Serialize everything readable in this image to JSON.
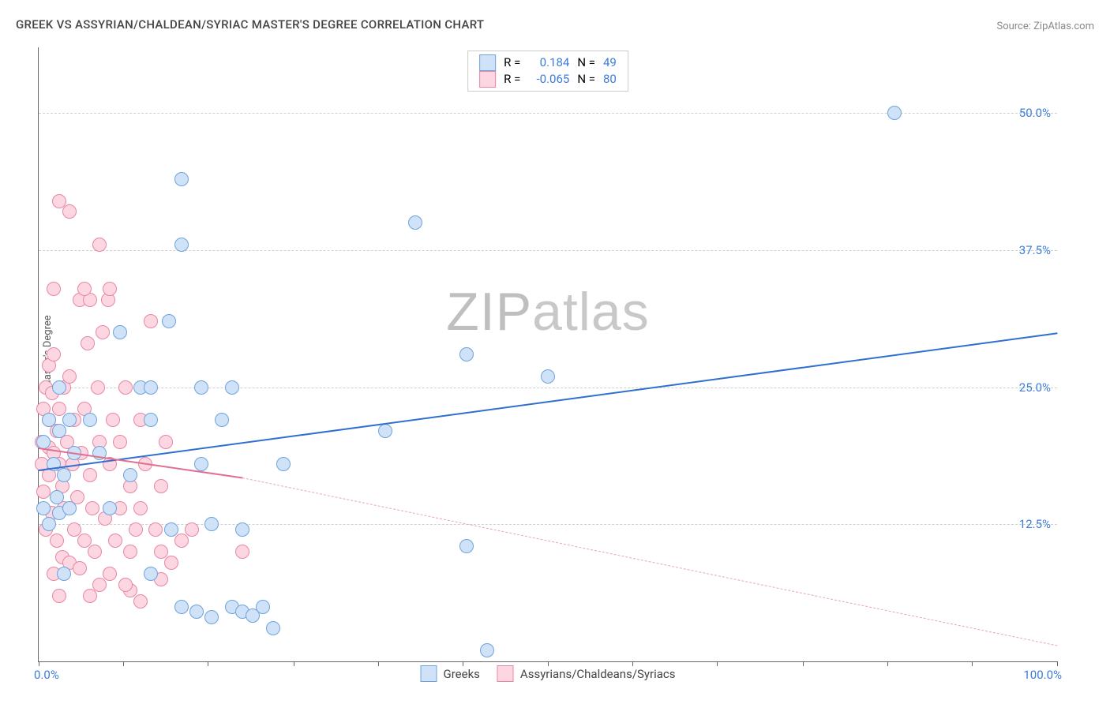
{
  "title": "GREEK VS ASSYRIAN/CHALDEAN/SYRIAC MASTER'S DEGREE CORRELATION CHART",
  "source": "Source: ZipAtlas.com",
  "yaxis_label": "Master's Degree",
  "watermark_bold": "ZIP",
  "watermark_thin": "atlas",
  "chart": {
    "type": "scatter",
    "background_color": "#ffffff",
    "grid_color": "#d0d0d0",
    "axis_color": "#666666",
    "xlim": [
      0,
      100
    ],
    "ylim": [
      0,
      56
    ],
    "ytick_values": [
      12.5,
      25.0,
      37.5,
      50.0
    ],
    "ytick_labels": [
      "12.5%",
      "25.0%",
      "37.5%",
      "50.0%"
    ],
    "ytick_color": "#3d7cd9",
    "xtick_positions": [
      0,
      8.3,
      16.6,
      25,
      33.3,
      41.6,
      50,
      58.3,
      66.6,
      75,
      83.3,
      91.6,
      100
    ],
    "xtick_left_label": "0.0%",
    "xtick_right_label": "100.0%",
    "xtick_label_color": "#3d7cd9",
    "marker_radius": 9,
    "marker_border_width": 1.2,
    "series": [
      {
        "name": "Greeks",
        "fill": "#cfe2f7",
        "stroke": "#6fa3dc",
        "R": "0.184",
        "N": "49",
        "regression": {
          "x1": 0,
          "y1": 17.5,
          "x2": 100,
          "y2": 30,
          "width": 2.5,
          "color": "#2f6fd0",
          "dash": "solid"
        },
        "points": [
          [
            0.5,
            14
          ],
          [
            0.5,
            20
          ],
          [
            1,
            12.5
          ],
          [
            1,
            22
          ],
          [
            1.5,
            18
          ],
          [
            1.8,
            15
          ],
          [
            2,
            21
          ],
          [
            2,
            13.5
          ],
          [
            2,
            25
          ],
          [
            2.5,
            17
          ],
          [
            3,
            22
          ],
          [
            3,
            14
          ],
          [
            3.5,
            19
          ],
          [
            8,
            30
          ],
          [
            9,
            17
          ],
          [
            10,
            25
          ],
          [
            11,
            22
          ],
          [
            11,
            25
          ],
          [
            12.8,
            31
          ],
          [
            14,
            38
          ],
          [
            14,
            44
          ],
          [
            16,
            18
          ],
          [
            16,
            25
          ],
          [
            18,
            22
          ],
          [
            19,
            25
          ],
          [
            11,
            8
          ],
          [
            17,
            12.5
          ],
          [
            14,
            5
          ],
          [
            15.5,
            4.5
          ],
          [
            17,
            4
          ],
          [
            19,
            5
          ],
          [
            20,
            4.5
          ],
          [
            22,
            5
          ],
          [
            21,
            4.2
          ],
          [
            23,
            3
          ],
          [
            24,
            18
          ],
          [
            13,
            12
          ],
          [
            20,
            12
          ],
          [
            6,
            19
          ],
          [
            5,
            22
          ],
          [
            7,
            14
          ],
          [
            37,
            40
          ],
          [
            34,
            21
          ],
          [
            42,
            28
          ],
          [
            42,
            10.5
          ],
          [
            50,
            26
          ],
          [
            44,
            1
          ],
          [
            84,
            50
          ],
          [
            2.5,
            8
          ]
        ]
      },
      {
        "name": "Assyrians/Chaldeans/Syriacs",
        "fill": "#fcd7e1",
        "stroke": "#e985a4",
        "R": "-0.065",
        "N": "80",
        "regression_solid": {
          "x1": 0,
          "y1": 19.5,
          "x2": 20,
          "y2": 16.8,
          "width": 2,
          "color": "#e06f92",
          "dash": "solid"
        },
        "regression_dash": {
          "x1": 20,
          "y1": 16.8,
          "x2": 100,
          "y2": 1.5,
          "width": 1,
          "color": "#e9a5ba",
          "dash": "dashed"
        },
        "points": [
          [
            0.3,
            18
          ],
          [
            0.3,
            20
          ],
          [
            0.5,
            15.5
          ],
          [
            0.5,
            23
          ],
          [
            0.7,
            12
          ],
          [
            0.7,
            25
          ],
          [
            1,
            17
          ],
          [
            1,
            19.5
          ],
          [
            1,
            22
          ],
          [
            1,
            27
          ],
          [
            1.3,
            13.5
          ],
          [
            1.3,
            24.5
          ],
          [
            1.5,
            8
          ],
          [
            1.5,
            19
          ],
          [
            1.5,
            28
          ],
          [
            1.8,
            11
          ],
          [
            1.8,
            21
          ],
          [
            2,
            6
          ],
          [
            2,
            18
          ],
          [
            2,
            23
          ],
          [
            2.3,
            9.5
          ],
          [
            2.3,
            16
          ],
          [
            2.5,
            25
          ],
          [
            2.5,
            14
          ],
          [
            2.8,
            20
          ],
          [
            3,
            26
          ],
          [
            3,
            9
          ],
          [
            3.3,
            18
          ],
          [
            3.5,
            22
          ],
          [
            3.5,
            12
          ],
          [
            3.8,
            15
          ],
          [
            4,
            33
          ],
          [
            4,
            8.5
          ],
          [
            4.2,
            19
          ],
          [
            4.5,
            23
          ],
          [
            4.5,
            11
          ],
          [
            5,
            33
          ],
          [
            5,
            17
          ],
          [
            5,
            6
          ],
          [
            5.3,
            14
          ],
          [
            5.5,
            10
          ],
          [
            5.8,
            25
          ],
          [
            6,
            38
          ],
          [
            6,
            20
          ],
          [
            6,
            7
          ],
          [
            6.3,
            30
          ],
          [
            6.5,
            13
          ],
          [
            6.8,
            33
          ],
          [
            7,
            18
          ],
          [
            7,
            8
          ],
          [
            7.3,
            22
          ],
          [
            7.5,
            11
          ],
          [
            8,
            14
          ],
          [
            8,
            20
          ],
          [
            8.5,
            25
          ],
          [
            9,
            10
          ],
          [
            9,
            16
          ],
          [
            9.5,
            12
          ],
          [
            10,
            22
          ],
          [
            10,
            14
          ],
          [
            10.5,
            18
          ],
          [
            11,
            31
          ],
          [
            11.5,
            12
          ],
          [
            12,
            10
          ],
          [
            12,
            16
          ],
          [
            12.5,
            20
          ],
          [
            3,
            41
          ],
          [
            4.5,
            34
          ],
          [
            1.5,
            34
          ],
          [
            4.8,
            29
          ],
          [
            2,
            42
          ],
          [
            13,
            9
          ],
          [
            14,
            11
          ],
          [
            15,
            12
          ],
          [
            9,
            6.5
          ],
          [
            10,
            5.5
          ],
          [
            8.5,
            7
          ],
          [
            12,
            7.5
          ],
          [
            20,
            10
          ],
          [
            7,
            34
          ]
        ]
      }
    ],
    "stats_box": {
      "border_color": "#cccccc",
      "value_color": "#3d7cd9",
      "label_color": "#444444"
    },
    "legend": {
      "series1_label": "Greeks",
      "series2_label": "Assyrians/Chaldeans/Syriacs"
    }
  }
}
